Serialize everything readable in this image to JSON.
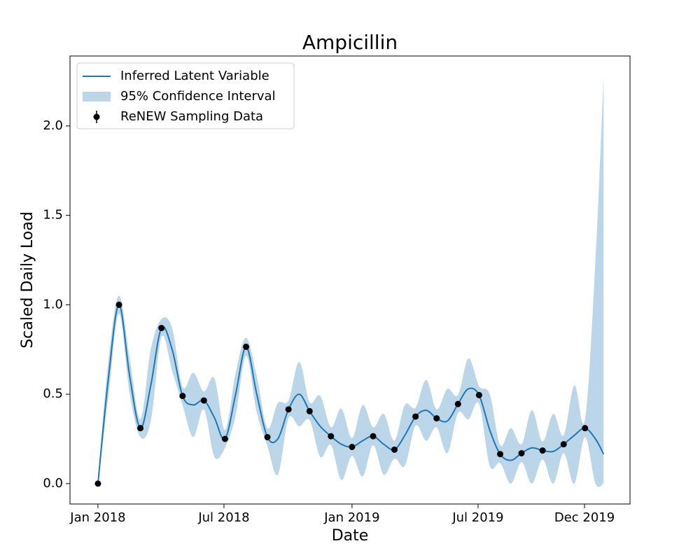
{
  "chart_data": {
    "type": "line",
    "title": "Ampicillin",
    "x_label": "Date",
    "y_label": "Scaled Daily Load",
    "xlim": [
      2017.89,
      2020.094
    ],
    "ylim": [
      -0.114,
      2.391
    ],
    "xticks": [
      {
        "value": 2018,
        "label": "Jan 2018"
      },
      {
        "value": 2018.496,
        "label": "Jul 2018"
      },
      {
        "value": 2019,
        "label": "Jan 2019"
      },
      {
        "value": 2019.496,
        "label": "Jul 2019"
      },
      {
        "value": 2019.915,
        "label": "Dec 2019"
      }
    ],
    "yticks": [
      {
        "value": 0,
        "label": "0.0"
      },
      0.5,
      {
        "value": 1,
        "label": "1.0"
      },
      1.5,
      {
        "value": 2,
        "label": "2.0"
      }
    ],
    "grid": false,
    "legend": "upper left",
    "series": [
      {
        "name": "Inferred Latent Variable",
        "type": "line",
        "color": "#1f77b4",
        "x": [
          2018,
          2018.042,
          2018.083,
          2018.125,
          2018.167,
          2018.208,
          2018.25,
          2018.292,
          2018.333,
          2018.375,
          2018.417,
          2018.458,
          2018.5,
          2018.542,
          2018.583,
          2018.625,
          2018.667,
          2018.708,
          2018.75,
          2018.792,
          2018.833,
          2018.875,
          2018.917,
          2018.958,
          2019,
          2019.042,
          2019.083,
          2019.125,
          2019.167,
          2019.208,
          2019.25,
          2019.292,
          2019.333,
          2019.375,
          2019.417,
          2019.458,
          2019.5,
          2019.542,
          2019.583,
          2019.625,
          2019.667,
          2019.708,
          2019.75,
          2019.792,
          2019.833,
          2019.875,
          2019.917,
          2019.958,
          2019.99
        ],
        "values": [
          0,
          0.6,
          1.0,
          0.6,
          0.31,
          0.55,
          0.87,
          0.75,
          0.49,
          0.44,
          0.465,
          0.37,
          0.25,
          0.5,
          0.765,
          0.5,
          0.26,
          0.25,
          0.415,
          0.5,
          0.405,
          0.32,
          0.265,
          0.22,
          0.205,
          0.24,
          0.265,
          0.22,
          0.19,
          0.27,
          0.375,
          0.41,
          0.365,
          0.35,
          0.445,
          0.53,
          0.495,
          0.3,
          0.165,
          0.13,
          0.17,
          0.2,
          0.185,
          0.18,
          0.22,
          0.27,
          0.31,
          0.25,
          0.165
        ]
      },
      {
        "name": "95% Confidence Interval",
        "type": "band",
        "color": "#1f77b4",
        "opacity": 0.3,
        "x": [
          2018,
          2018.042,
          2018.083,
          2018.125,
          2018.167,
          2018.208,
          2018.25,
          2018.292,
          2018.333,
          2018.375,
          2018.417,
          2018.458,
          2018.5,
          2018.542,
          2018.583,
          2018.625,
          2018.667,
          2018.708,
          2018.75,
          2018.792,
          2018.833,
          2018.875,
          2018.917,
          2018.958,
          2019,
          2019.042,
          2019.083,
          2019.125,
          2019.167,
          2019.208,
          2019.25,
          2019.292,
          2019.333,
          2019.375,
          2019.417,
          2019.458,
          2019.5,
          2019.542,
          2019.583,
          2019.625,
          2019.667,
          2019.708,
          2019.75,
          2019.792,
          2019.833,
          2019.875,
          2019.917,
          2019.958,
          2019.99
        ],
        "upper": [
          0.03,
          0.7,
          1.05,
          0.7,
          0.36,
          0.75,
          0.92,
          0.87,
          0.54,
          0.62,
          0.515,
          0.59,
          0.3,
          0.62,
          0.815,
          0.6,
          0.31,
          0.45,
          0.465,
          0.68,
          0.455,
          0.49,
          0.315,
          0.42,
          0.255,
          0.44,
          0.315,
          0.39,
          0.24,
          0.44,
          0.425,
          0.58,
          0.415,
          0.53,
          0.495,
          0.7,
          0.545,
          0.5,
          0.215,
          0.31,
          0.22,
          0.41,
          0.235,
          0.39,
          0.27,
          0.55,
          0.36,
          1.25,
          2.27
        ],
        "lower": [
          0,
          0.5,
          0.95,
          0.5,
          0.26,
          0.35,
          0.82,
          0.63,
          0.44,
          0.26,
          0.415,
          0.15,
          0.2,
          0.38,
          0.715,
          0.4,
          0.21,
          0.05,
          0.365,
          0.32,
          0.355,
          0.15,
          0.215,
          0.02,
          0.155,
          0.04,
          0.215,
          0.05,
          0.14,
          0.1,
          0.325,
          0.24,
          0.315,
          0.17,
          0.395,
          0.36,
          0.445,
          0.1,
          0.115,
          0,
          0.12,
          0,
          0.135,
          0,
          0.17,
          0,
          0.26,
          0,
          0
        ]
      },
      {
        "name": "ReNEW Sampling Data",
        "type": "scatter",
        "color": "#000000",
        "x": [
          2018,
          2018.083,
          2018.167,
          2018.25,
          2018.333,
          2018.417,
          2018.5,
          2018.583,
          2018.667,
          2018.75,
          2018.833,
          2018.917,
          2019,
          2019.083,
          2019.167,
          2019.25,
          2019.333,
          2019.417,
          2019.5,
          2019.583,
          2019.667,
          2019.75,
          2019.833,
          2019.917
        ],
        "values": [
          0,
          1.0,
          0.31,
          0.87,
          0.49,
          0.465,
          0.25,
          0.765,
          0.26,
          0.415,
          0.405,
          0.265,
          0.205,
          0.265,
          0.19,
          0.375,
          0.365,
          0.445,
          0.495,
          0.165,
          0.17,
          0.185,
          0.22,
          0.31
        ]
      }
    ]
  }
}
